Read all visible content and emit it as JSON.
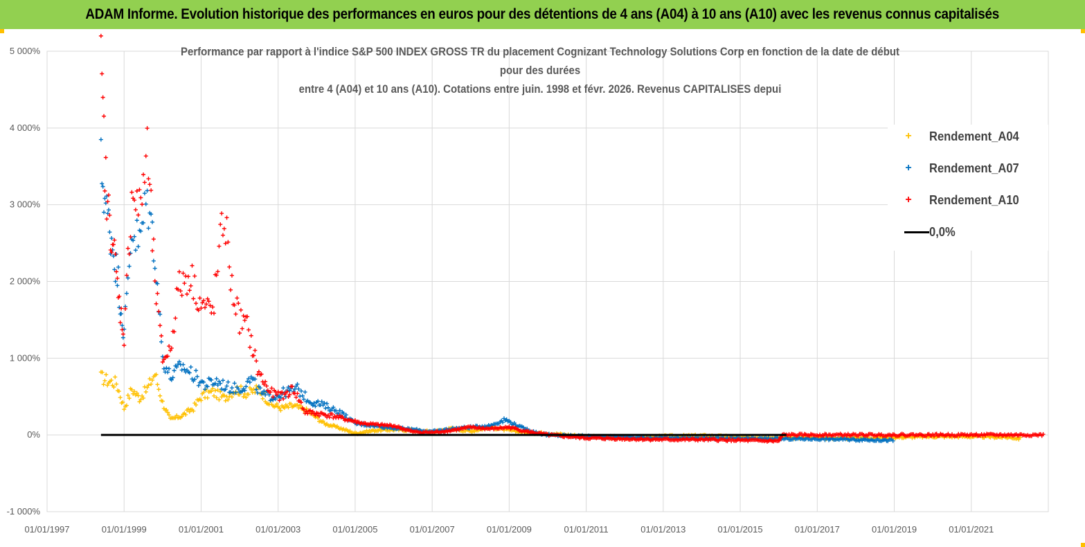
{
  "banner": {
    "title": "ADAM Informe. Evolution historique des performances en euros pour des détentions de 4 ans (A04) à 10 ans (A10) avec les revenus connus capitalisés"
  },
  "colors": {
    "banner_bg": "#92d050",
    "a04": "#ffc000",
    "a07": "#0070c0",
    "a10": "#ff0000",
    "zero": "#000000"
  },
  "chart_data": {
    "type": "scatter",
    "title_lines": [
      "Performance par rapport à l'indice S&P 500 INDEX GROSS TR  du placement Cognizant Technology Solutions Corp en fonction de la date de début",
      "pour des durées",
      "entre 4 (A04) et 10 ans (A10). Cotations entre juin. 1998 et févr. 2026. Revenus CAPITALISES depui"
    ],
    "xlabel": "",
    "ylabel": "",
    "xlim": [
      "01/01/1997",
      "01/01/2023"
    ],
    "ylim": [
      -1000,
      5000
    ],
    "y_ticks": [
      -1000,
      0,
      1000,
      2000,
      3000,
      4000,
      5000
    ],
    "y_tick_labels": [
      "-1 000%",
      "0%",
      "1 000%",
      "2 000%",
      "3 000%",
      "4 000%",
      "5 000%"
    ],
    "x_tick_labels": [
      "01/01/1997",
      "01/01/1999",
      "01/01/2001",
      "01/01/2003",
      "01/01/2005",
      "01/01/2007",
      "01/01/2009",
      "01/01/2011",
      "01/01/2013",
      "01/01/2015",
      "01/01/2017",
      "01/01/2019",
      "01/01/2021"
    ],
    "grid": true,
    "legend_position": "right",
    "series": [
      {
        "name": "Rendement_A04",
        "color": "#ffc000",
        "x": [
          1998.4,
          1998.6,
          1998.8,
          1999.0,
          1999.2,
          1999.4,
          1999.6,
          1999.8,
          2000.0,
          2000.2,
          2000.5,
          2000.8,
          2001.0,
          2001.3,
          2001.6,
          2001.9,
          2002.2,
          2002.5,
          2002.8,
          2003.1,
          2003.4,
          2003.8,
          2004.2,
          2004.6,
          2005.0,
          2005.5,
          2006.0,
          2006.5,
          2007.0,
          2007.5,
          2008.0,
          2008.5,
          2009.0,
          2009.5,
          2010.0,
          2011.0,
          2012.0,
          2013.0,
          2014.0,
          2015.0,
          2016.0,
          2017.0,
          2018.0,
          2019.0,
          2020.0,
          2021.0,
          2022.0,
          2022.3
        ],
        "y": [
          750,
          700,
          680,
          350,
          600,
          480,
          600,
          800,
          420,
          200,
          250,
          350,
          500,
          560,
          480,
          600,
          540,
          600,
          400,
          350,
          380,
          300,
          150,
          90,
          20,
          60,
          70,
          60,
          40,
          80,
          50,
          100,
          60,
          30,
          20,
          -20,
          -40,
          -20,
          -10,
          -30,
          -30,
          -40,
          -40,
          -30,
          -20,
          -20,
          -30,
          -50
        ]
      },
      {
        "name": "Rendement_A07",
        "color": "#0070c0",
        "x": [
          1998.4,
          1998.55,
          1998.7,
          1998.85,
          1999.0,
          1999.2,
          1999.4,
          1999.6,
          1999.8,
          2000.0,
          2000.2,
          2000.5,
          2000.8,
          2001.1,
          2001.4,
          2001.7,
          2002.0,
          2002.3,
          2002.6,
          2002.9,
          2003.2,
          2003.5,
          2003.8,
          2004.2,
          2004.6,
          2005.0,
          2005.5,
          2006.0,
          2006.5,
          2007.0,
          2007.5,
          2008.0,
          2008.5,
          2008.9,
          2009.3,
          2009.7,
          2010.0,
          2011.0,
          2012.0,
          2013.0,
          2014.0,
          2015.0,
          2016.0,
          2017.0,
          2018.0,
          2019.0
        ],
        "y": [
          3500,
          2900,
          2500,
          2000,
          1300,
          2700,
          2500,
          3100,
          2400,
          1000,
          750,
          900,
          780,
          650,
          700,
          620,
          600,
          720,
          520,
          500,
          560,
          600,
          450,
          380,
          300,
          150,
          120,
          90,
          70,
          40,
          80,
          100,
          120,
          200,
          100,
          30,
          0,
          -20,
          -30,
          -40,
          -40,
          -50,
          -50,
          -50,
          -60,
          -70
        ]
      },
      {
        "name": "Rendement_A10",
        "color": "#ff0000",
        "x": [
          1998.4,
          1998.55,
          1998.7,
          1998.85,
          1999.0,
          1999.2,
          1999.4,
          1999.6,
          1999.8,
          2000.0,
          2000.2,
          2000.4,
          2000.7,
          2001.0,
          2001.3,
          2001.6,
          2001.8,
          2002.0,
          2002.2,
          2002.5,
          2002.8,
          2003.1,
          2003.4,
          2003.7,
          2004.0,
          2004.4,
          2004.8,
          2005.2,
          2005.6,
          2006.0,
          2006.5,
          2007.0,
          2007.5,
          2008.0,
          2008.5,
          2009.0,
          2009.5,
          2010.0,
          2011.0,
          2012.0,
          2013.0,
          2014.0,
          2015.0,
          2016.0,
          2016.1,
          2017.0,
          2018.0,
          2019.0,
          2020.0,
          2021.0,
          2022.0,
          2022.9
        ],
        "y": [
          4700,
          3000,
          2600,
          1800,
          1300,
          3200,
          2900,
          3700,
          2000,
          1000,
          1100,
          1900,
          2100,
          1700,
          1600,
          2900,
          1900,
          1500,
          1400,
          800,
          550,
          500,
          600,
          300,
          280,
          250,
          200,
          150,
          130,
          120,
          40,
          30,
          60,
          100,
          80,
          100,
          40,
          0,
          -40,
          -50,
          -60,
          -60,
          -70,
          -80,
          0,
          0,
          0,
          0,
          0,
          0,
          0,
          0
        ]
      }
    ],
    "reference_line": {
      "name": "0,0%",
      "y": 0,
      "x_range": [
        1998.4,
        2016.2
      ],
      "color": "#000000"
    }
  }
}
